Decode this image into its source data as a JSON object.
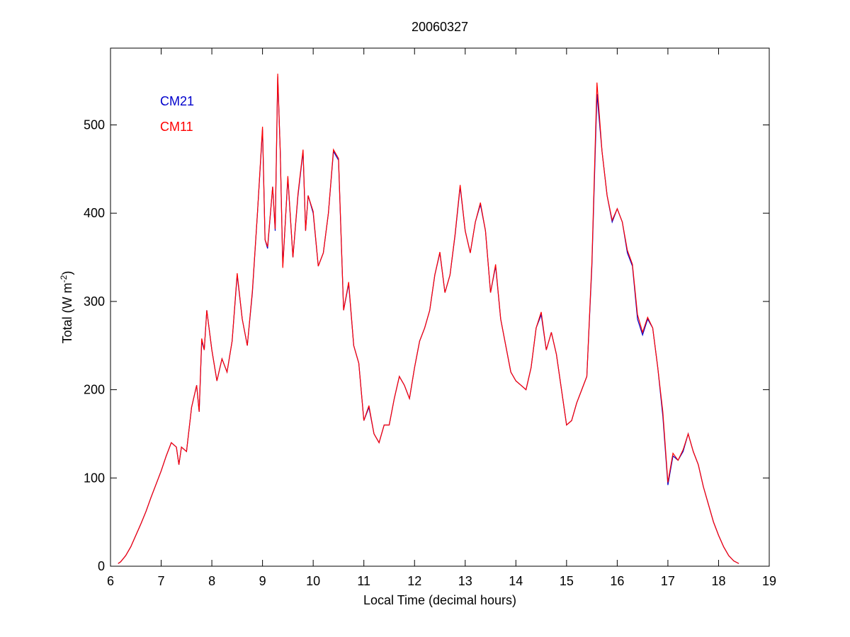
{
  "chart_data": {
    "type": "line",
    "title": "20060327",
    "xlabel": "Local Time (decimal hours)",
    "ylabel": [
      "Total (W m",
      "-2",
      ")"
    ],
    "xlim": [
      6,
      19
    ],
    "ylim": [
      0,
      587
    ],
    "xticks": [
      6,
      7,
      8,
      9,
      10,
      11,
      12,
      13,
      14,
      15,
      16,
      17,
      18,
      19
    ],
    "yticks": [
      0,
      100,
      200,
      300,
      400,
      500
    ],
    "legend": "upper left",
    "grid": false,
    "x": [
      6.15,
      6.2,
      6.3,
      6.4,
      6.5,
      6.6,
      6.7,
      6.8,
      6.9,
      7.0,
      7.1,
      7.2,
      7.3,
      7.35,
      7.4,
      7.5,
      7.6,
      7.7,
      7.75,
      7.8,
      7.85,
      7.9,
      8.0,
      8.1,
      8.2,
      8.3,
      8.4,
      8.5,
      8.6,
      8.7,
      8.8,
      8.9,
      9.0,
      9.05,
      9.1,
      9.2,
      9.25,
      9.3,
      9.35,
      9.4,
      9.5,
      9.6,
      9.7,
      9.8,
      9.85,
      9.9,
      10.0,
      10.1,
      10.2,
      10.3,
      10.4,
      10.5,
      10.6,
      10.7,
      10.8,
      10.9,
      11.0,
      11.1,
      11.2,
      11.3,
      11.4,
      11.5,
      11.6,
      11.7,
      11.8,
      11.9,
      12.0,
      12.1,
      12.2,
      12.3,
      12.4,
      12.5,
      12.6,
      12.7,
      12.8,
      12.9,
      13.0,
      13.1,
      13.2,
      13.3,
      13.4,
      13.5,
      13.6,
      13.7,
      13.8,
      13.9,
      14.0,
      14.1,
      14.2,
      14.3,
      14.4,
      14.5,
      14.6,
      14.7,
      14.8,
      14.9,
      15.0,
      15.1,
      15.2,
      15.3,
      15.4,
      15.5,
      15.6,
      15.7,
      15.8,
      15.9,
      16.0,
      16.1,
      16.2,
      16.3,
      16.4,
      16.5,
      16.6,
      16.7,
      16.8,
      16.9,
      17.0,
      17.1,
      17.2,
      17.3,
      17.4,
      17.5,
      17.6,
      17.7,
      17.8,
      17.9,
      18.0,
      18.1,
      18.2,
      18.3,
      18.4
    ],
    "series": [
      {
        "name": "CM21",
        "color": "#0000cc",
        "values": [
          3,
          5,
          12,
          22,
          35,
          48,
          62,
          78,
          93,
          108,
          125,
          140,
          135,
          115,
          135,
          130,
          180,
          205,
          175,
          255,
          245,
          290,
          245,
          210,
          235,
          220,
          255,
          330,
          280,
          250,
          310,
          400,
          495,
          370,
          360,
          430,
          380,
          555,
          470,
          340,
          440,
          350,
          420,
          470,
          380,
          420,
          400,
          340,
          355,
          400,
          470,
          460,
          290,
          320,
          250,
          230,
          165,
          180,
          150,
          140,
          160,
          160,
          190,
          215,
          205,
          190,
          225,
          255,
          270,
          290,
          330,
          355,
          310,
          330,
          375,
          430,
          380,
          355,
          390,
          410,
          380,
          310,
          340,
          280,
          250,
          220,
          210,
          205,
          200,
          225,
          270,
          285,
          245,
          265,
          240,
          200,
          160,
          165,
          185,
          200,
          215,
          340,
          535,
          470,
          420,
          390,
          405,
          390,
          355,
          340,
          280,
          262,
          280,
          270,
          225,
          170,
          92,
          125,
          120,
          130,
          150,
          130,
          115,
          90,
          70,
          50,
          35,
          22,
          12,
          6,
          3
        ]
      },
      {
        "name": "CM11",
        "color": "#ff0000",
        "values": [
          3,
          5,
          12,
          22,
          35,
          48,
          62,
          78,
          93,
          108,
          125,
          140,
          135,
          115,
          135,
          130,
          180,
          205,
          175,
          258,
          245,
          290,
          245,
          210,
          235,
          220,
          255,
          332,
          280,
          250,
          312,
          400,
          498,
          370,
          362,
          430,
          382,
          558,
          470,
          338,
          442,
          350,
          422,
          472,
          380,
          420,
          402,
          340,
          355,
          400,
          472,
          462,
          290,
          322,
          250,
          230,
          165,
          182,
          150,
          140,
          160,
          160,
          190,
          215,
          205,
          190,
          225,
          255,
          270,
          290,
          330,
          356,
          310,
          330,
          376,
          432,
          380,
          355,
          390,
          412,
          380,
          310,
          342,
          280,
          250,
          220,
          210,
          205,
          200,
          225,
          270,
          288,
          245,
          265,
          240,
          200,
          160,
          165,
          185,
          200,
          215,
          345,
          548,
          470,
          420,
          392,
          405,
          390,
          358,
          342,
          285,
          265,
          282,
          270,
          225,
          175,
          95,
          128,
          120,
          132,
          150,
          130,
          115,
          90,
          70,
          50,
          35,
          22,
          12,
          6,
          3
        ]
      }
    ]
  }
}
